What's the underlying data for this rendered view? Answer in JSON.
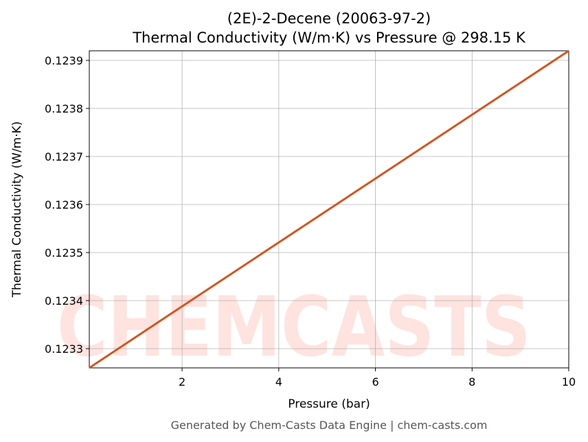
{
  "chart_data": {
    "type": "line",
    "title": "(2E)-2-Decene (20063-97-2)",
    "subtitle": "Thermal Conductivity (W/m·K) vs Pressure @ 298.15 K",
    "x_label": "Pressure (bar)",
    "y_label": "Thermal Conductivity (W/m·K)",
    "footer": "Generated by Chem-Casts Data Engine | chem-casts.com",
    "watermark": "CHEMCASTS",
    "x": [
      0.08,
      2,
      4,
      6,
      8,
      10
    ],
    "series": [
      {
        "color": "#d4541f",
        "values": [
          0.12326,
          0.123388,
          0.123521,
          0.123654,
          0.123787,
          0.12392
        ]
      }
    ],
    "xlim": [
      0.08,
      10
    ],
    "xticks": [
      2,
      4,
      6,
      8,
      10
    ],
    "ylim": [
      0.12326,
      0.12392
    ],
    "yticks": [
      0.1233,
      0.1234,
      0.1235,
      0.1236,
      0.1237,
      0.1238,
      0.1239
    ],
    "grid": true
  }
}
